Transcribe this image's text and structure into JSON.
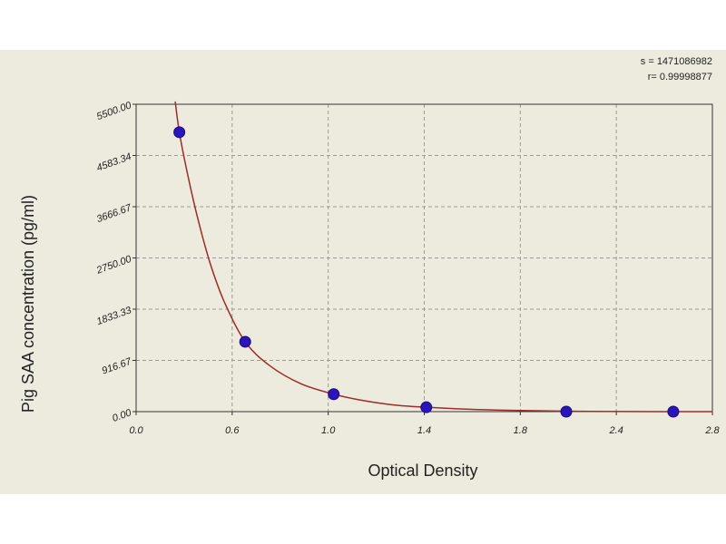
{
  "chart_data": {
    "type": "scatter",
    "title": "",
    "xlabel": "Optical Density",
    "ylabel": "Pig SAA concentration (pg/ml)",
    "xlim": [
      0.0,
      2.8
    ],
    "ylim": [
      0.0,
      5500.0
    ],
    "x_ticks": [
      "0.0",
      "0.6",
      "1.0",
      "1.4",
      "1.8",
      "2.4",
      "2.8"
    ],
    "y_ticks": [
      "0.00",
      "916.67",
      "1833.33",
      "2750.00",
      "3666.67",
      "4583.34",
      "5500.00"
    ],
    "grid": true,
    "points": {
      "x": [
        0.21,
        0.53,
        0.96,
        1.41,
        2.09,
        2.61
      ],
      "y": [
        5000,
        1250,
        312.5,
        78.1,
        0,
        0
      ]
    },
    "curve": {
      "x": [
        0.19,
        0.21,
        0.25,
        0.3,
        0.36,
        0.43,
        0.53,
        0.65,
        0.8,
        0.96,
        1.1,
        1.25,
        1.41,
        1.6,
        1.8,
        2.09,
        2.4,
        2.61,
        2.8
      ],
      "y": [
        5550,
        5000,
        4250,
        3450,
        2650,
        1950,
        1250,
        820,
        500,
        312.5,
        200,
        120,
        78.1,
        45,
        25,
        8,
        2,
        0,
        0
      ]
    },
    "colors": {
      "point": "#2a16b8",
      "curve": "#9b2d2d",
      "grid": "#9a9a9a"
    },
    "stats": {
      "s": "s = 1471086982",
      "r": "r= 0.99998877"
    }
  }
}
